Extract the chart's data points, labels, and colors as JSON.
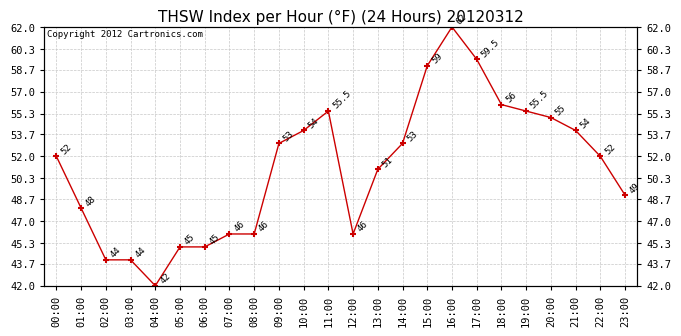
{
  "title": "THSW Index per Hour (°F) (24 Hours) 20120312",
  "copyright": "Copyright 2012 Cartronics.com",
  "hours": [
    "00:00",
    "01:00",
    "02:00",
    "03:00",
    "04:00",
    "05:00",
    "06:00",
    "07:00",
    "08:00",
    "09:00",
    "10:00",
    "11:00",
    "12:00",
    "13:00",
    "14:00",
    "15:00",
    "16:00",
    "17:00",
    "18:00",
    "19:00",
    "20:00",
    "21:00",
    "22:00",
    "23:00"
  ],
  "ydata": [
    52,
    48,
    44,
    44,
    42,
    45,
    45,
    46,
    46,
    53,
    54,
    55.5,
    46,
    51,
    53,
    59,
    62,
    59.5,
    56,
    55.5,
    55,
    54,
    52,
    49
  ],
  "point_labels": [
    "52",
    "48",
    "44",
    "44",
    "42",
    "45",
    "45",
    "46",
    "46",
    "53",
    "54",
    "55.5",
    "46",
    "51",
    "53",
    "59",
    "62",
    "59.5",
    "56",
    "55.5",
    "55",
    "54",
    "52",
    "49"
  ],
  "ylim": [
    42.0,
    62.0
  ],
  "yticks": [
    42.0,
    43.7,
    45.3,
    47.0,
    48.7,
    50.3,
    52.0,
    53.7,
    55.3,
    57.0,
    58.7,
    60.3,
    62.0
  ],
  "line_color": "#cc0000",
  "marker_color": "#cc0000",
  "bg_color": "#ffffff",
  "plot_bg_color": "#ffffff",
  "grid_color": "#c8c8c8",
  "title_fontsize": 11,
  "point_label_fontsize": 6.5,
  "copyright_fontsize": 6.5,
  "tick_fontsize": 7.5
}
